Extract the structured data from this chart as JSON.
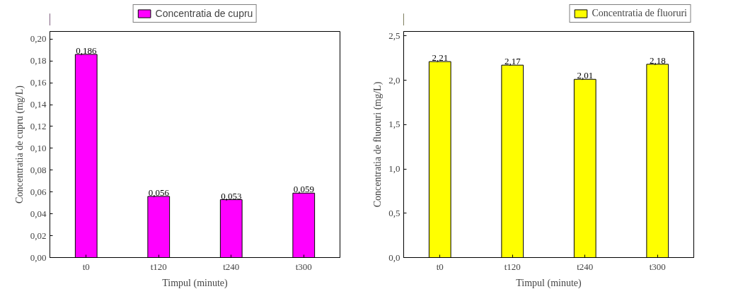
{
  "chart_data": [
    {
      "type": "bar",
      "categories": [
        "t0",
        "t120",
        "t240",
        "t300"
      ],
      "xlabel": "Timpul (minute)",
      "ylabel": "Concentratia de cupru (mg/L)",
      "series": [
        {
          "name": "Concentratia de cupru",
          "color": "#ff00ff",
          "values": [
            0.186,
            0.056,
            0.053,
            0.059
          ],
          "value_labels": [
            "0,186",
            "0,056",
            "0,053",
            "0,059"
          ]
        }
      ],
      "ylim": [
        0,
        0.207
      ],
      "yticks": [
        {
          "value": 0,
          "label": "0,00"
        },
        {
          "value": 0.02,
          "label": "0,02"
        },
        {
          "value": 0.04,
          "label": "0,04"
        },
        {
          "value": 0.06,
          "label": "0,06"
        },
        {
          "value": 0.08,
          "label": "0,08"
        },
        {
          "value": 0.1,
          "label": "0,10"
        },
        {
          "value": 0.12,
          "label": "0,12"
        },
        {
          "value": 0.14,
          "label": "0,14"
        },
        {
          "value": 0.16,
          "label": "0,16"
        },
        {
          "value": 0.18,
          "label": "0,18"
        },
        {
          "value": 0.2,
          "label": "0,20"
        }
      ],
      "legend": "top",
      "grid": false
    },
    {
      "type": "bar",
      "categories": [
        "t0",
        "t120",
        "t240",
        "t300"
      ],
      "xlabel": "Timpul (minute)",
      "ylabel": "Concentratia de fluoruri (mg/L)",
      "series": [
        {
          "name": "Concentratia de fluoruri",
          "color": "#ffff00",
          "values": [
            2.21,
            2.17,
            2.01,
            2.18
          ],
          "value_labels": [
            "2,21",
            "2,17",
            "2,01",
            "2,18"
          ]
        }
      ],
      "ylim": [
        0,
        2.55
      ],
      "yticks": [
        {
          "value": 0,
          "label": "0,0"
        },
        {
          "value": 0.5,
          "label": "0,5"
        },
        {
          "value": 1,
          "label": "1,0"
        },
        {
          "value": 1.5,
          "label": "1,5"
        },
        {
          "value": 2,
          "label": "2,0"
        },
        {
          "value": 2.5,
          "label": "2,5"
        }
      ],
      "legend": "top right",
      "grid": false
    }
  ]
}
